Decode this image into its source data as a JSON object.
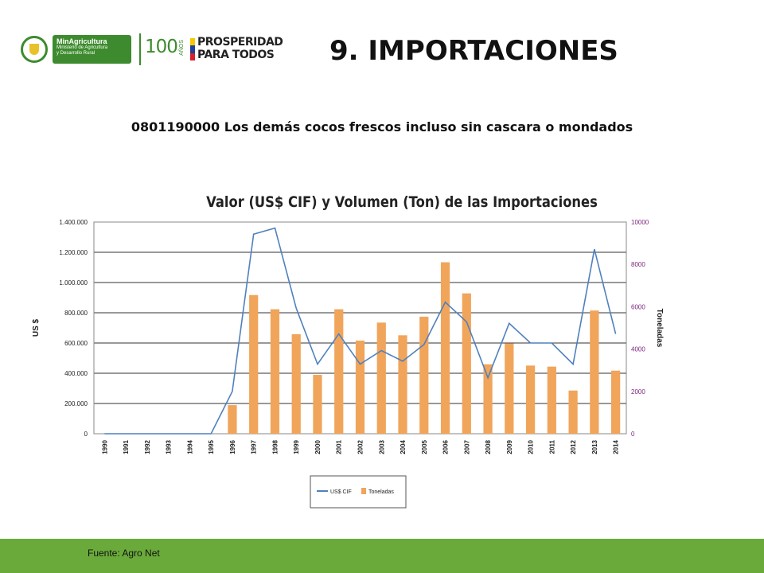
{
  "header": {
    "ministry_name": "MinAgricultura",
    "ministry_line1": "Ministerio de Agricultura",
    "ministry_line2": "y Desarrollo Rural",
    "centenary": "100",
    "centenary_suffix": "AÑOS",
    "campaign_line1": "PROSPERIDAD",
    "campaign_line2": "PARA TODOS",
    "flag_colors": [
      "#f5c800",
      "#1f3f99",
      "#d6202a"
    ]
  },
  "slide_title": "9. IMPORTACIONES",
  "subtitle": "0801190000 Los demás cocos frescos incluso sin cascara o mondados",
  "footer": {
    "source": "Fuente: Agro Net"
  },
  "colors": {
    "footer_green": "#6aaa3b",
    "ministry_green": "#3d8b2e",
    "line_color": "#4f81bd",
    "bar_color": "#f0a55b",
    "right_axis_color": "#7a1f7a"
  },
  "chart_data": {
    "type": "bar",
    "title": "Valor (US$ CIF) y Volumen (Ton) de las Importaciones",
    "ylabel": "US $",
    "y2label": "Toneladas",
    "categories": [
      "1990",
      "1991",
      "1992",
      "1993",
      "1994",
      "1995",
      "1996",
      "1997",
      "1998",
      "1999",
      "2000",
      "2001",
      "2002",
      "2003",
      "2004",
      "2005",
      "2006",
      "2007",
      "2008",
      "2009",
      "2010",
      "2011",
      "2012",
      "2013",
      "2014"
    ],
    "ylim": [
      0,
      1400000
    ],
    "y2lim": [
      0,
      10000
    ],
    "yticks": [
      "0",
      "200.000",
      "400.000",
      "600.000",
      "800.000",
      "1.000.000",
      "1.200.000",
      "1.400.000"
    ],
    "y2ticks": [
      "0",
      "2000",
      "4000",
      "6000",
      "8000",
      "10000"
    ],
    "series": [
      {
        "name": "US$ CIF",
        "kind": "line",
        "axis": "left",
        "values": [
          0,
          0,
          0,
          0,
          0,
          0,
          280000,
          1320000,
          1360000,
          830000,
          460000,
          660000,
          460000,
          550000,
          480000,
          590000,
          870000,
          740000,
          370000,
          730000,
          600000,
          600000,
          460000,
          1220000,
          660000
        ]
      },
      {
        "name": "Toneladas",
        "kind": "bar",
        "axis": "right",
        "values": [
          0,
          0,
          0,
          0,
          0,
          0,
          1350,
          6550,
          5880,
          4700,
          2780,
          5880,
          4400,
          5250,
          4650,
          5530,
          8100,
          6630,
          3280,
          4270,
          3220,
          3170,
          2040,
          5820,
          2980
        ]
      }
    ],
    "grid": true,
    "legend_position": "bottom"
  }
}
